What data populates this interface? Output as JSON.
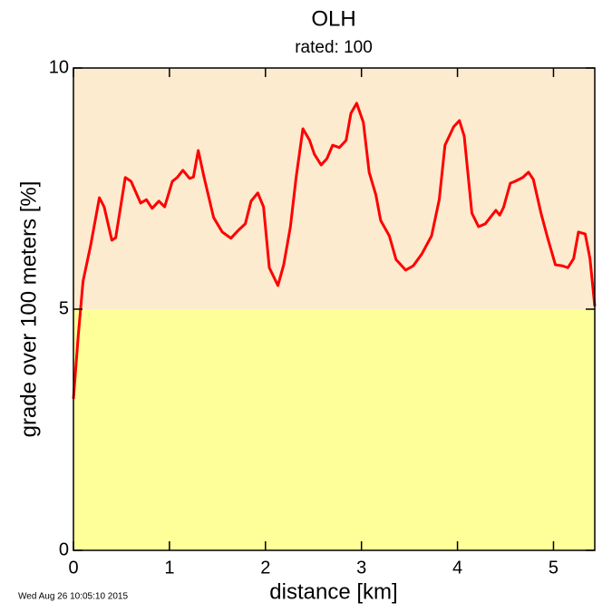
{
  "chart_data": {
    "type": "line",
    "title": "OLH",
    "subtitle": "rated: 100",
    "xlabel": "distance [km]",
    "ylabel": "grade over 100 meters [%]",
    "timestamp": "Wed Aug 26 10:05:10 2015",
    "xlim": [
      0,
      5.43
    ],
    "ylim": [
      0,
      10
    ],
    "xticks": [
      0,
      1,
      2,
      3,
      4,
      5
    ],
    "yticks": [
      0,
      5,
      10
    ],
    "bands": [
      {
        "from": 0,
        "to": 5,
        "color": "#ffff99"
      },
      {
        "from": 5,
        "to": 10,
        "color": "#fdebd0"
      }
    ],
    "color": "#ff0000",
    "x": [
      0,
      0.05,
      0.1,
      0.18,
      0.27,
      0.32,
      0.4,
      0.44,
      0.54,
      0.6,
      0.7,
      0.76,
      0.82,
      0.89,
      0.95,
      1.03,
      1.08,
      1.14,
      1.21,
      1.25,
      1.3,
      1.36,
      1.46,
      1.55,
      1.64,
      1.72,
      1.79,
      1.85,
      1.92,
      1.98,
      2.04,
      2.13,
      2.19,
      2.26,
      2.32,
      2.39,
      2.46,
      2.51,
      2.58,
      2.64,
      2.7,
      2.77,
      2.84,
      2.89,
      2.95,
      3.02,
      3.08,
      3.15,
      3.2,
      3.29,
      3.36,
      3.46,
      3.54,
      3.63,
      3.73,
      3.81,
      3.87,
      3.96,
      4.02,
      4.07,
      4.15,
      4.22,
      4.29,
      4.4,
      4.44,
      4.48,
      4.55,
      4.6,
      4.68,
      4.74,
      4.79,
      4.87,
      4.94,
      5.02,
      5.09,
      5.15,
      5.21,
      5.26,
      5.33,
      5.38,
      5.43
    ],
    "values": [
      3.14,
      4.45,
      5.58,
      6.33,
      7.31,
      7.12,
      6.43,
      6.48,
      7.73,
      7.65,
      7.2,
      7.27,
      7.09,
      7.24,
      7.12,
      7.65,
      7.73,
      7.88,
      7.71,
      7.74,
      8.29,
      7.74,
      6.9,
      6.6,
      6.47,
      6.64,
      6.77,
      7.24,
      7.41,
      7.12,
      5.86,
      5.49,
      5.92,
      6.71,
      7.74,
      8.74,
      8.5,
      8.21,
      7.99,
      8.12,
      8.4,
      8.35,
      8.5,
      9.06,
      9.27,
      8.87,
      7.84,
      7.37,
      6.84,
      6.52,
      6.03,
      5.81,
      5.9,
      6.15,
      6.52,
      7.27,
      8.4,
      8.78,
      8.91,
      8.59,
      6.99,
      6.71,
      6.77,
      7.05,
      6.95,
      7.11,
      7.61,
      7.65,
      7.73,
      7.84,
      7.69,
      6.99,
      6.47,
      5.92,
      5.9,
      5.86,
      6.05,
      6.6,
      6.56,
      6.05,
      5.06
    ]
  }
}
